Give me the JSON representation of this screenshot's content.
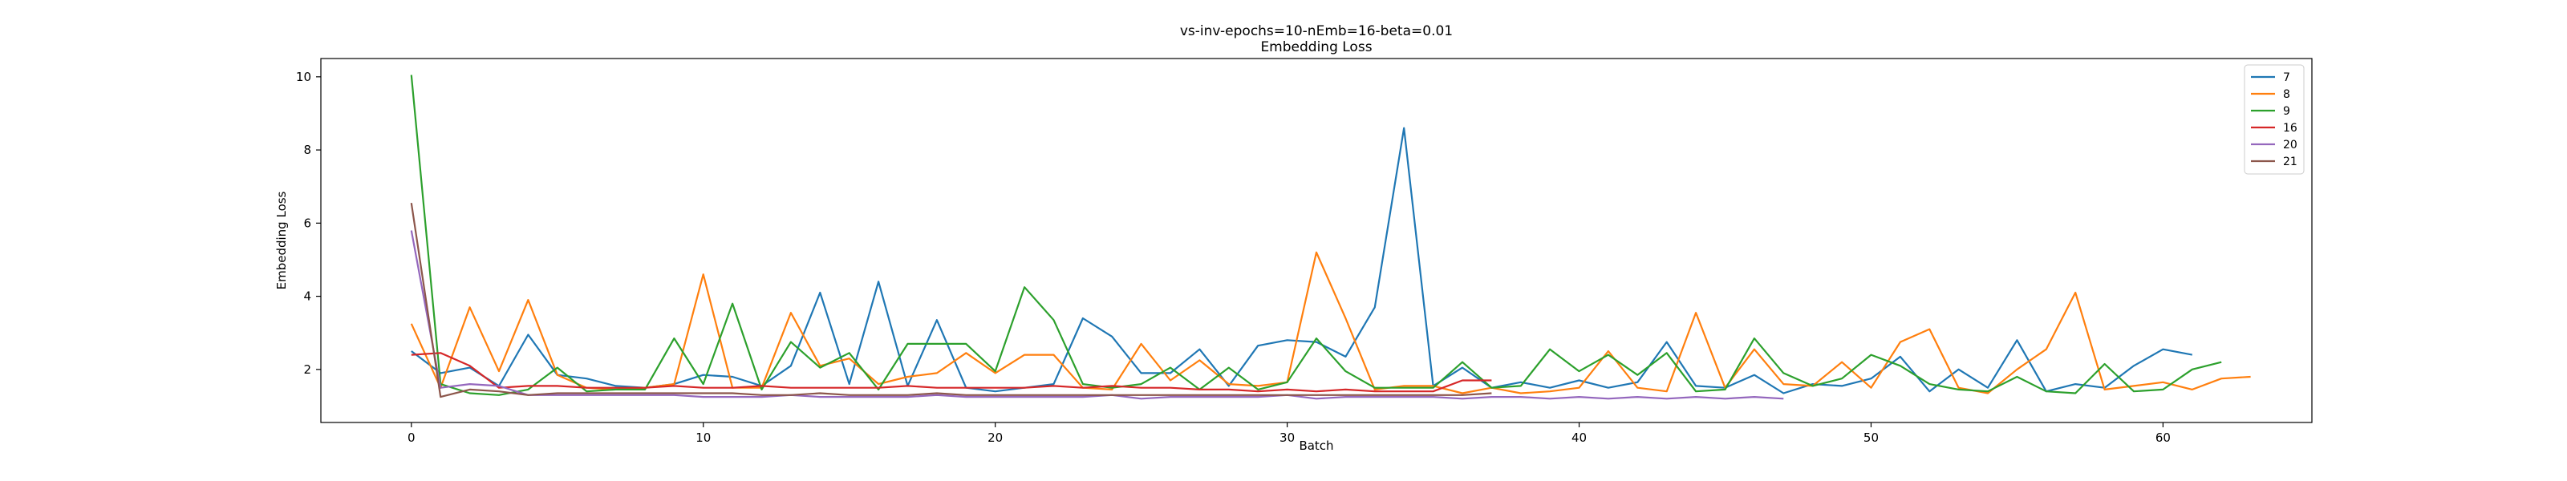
{
  "chart_data": {
    "type": "line",
    "title": "vs-inv-epochs=10-nEmb=16-beta=0.01",
    "subtitle": "Embedding Loss",
    "xlabel": "Batch",
    "ylabel": "Embedding Loss",
    "xlim": [
      -3.1,
      65.1
    ],
    "ylim": [
      0.55,
      10.5
    ],
    "xticks": [
      0,
      10,
      20,
      30,
      40,
      50,
      60
    ],
    "yticks": [
      2,
      4,
      6,
      8,
      10
    ],
    "grid": false,
    "legend": "top-right",
    "series": [
      {
        "name": "7",
        "color": "#1f77b4",
        "values": [
          2.5,
          1.9,
          2.05,
          1.55,
          2.95,
          1.85,
          1.75,
          1.55,
          1.5,
          1.6,
          1.85,
          1.8,
          1.55,
          2.1,
          4.1,
          1.6,
          4.4,
          1.55,
          3.35,
          1.5,
          1.4,
          1.5,
          1.6,
          3.4,
          2.9,
          1.9,
          1.9,
          2.55,
          1.55,
          2.65,
          2.8,
          2.75,
          2.35,
          3.7,
          8.6,
          1.55,
          2.05,
          1.5,
          1.65,
          1.5,
          1.7,
          1.5,
          1.65,
          2.75,
          1.55,
          1.5,
          1.85,
          1.35,
          1.6,
          1.55,
          1.75,
          2.35,
          1.4,
          2.0,
          1.5,
          2.8,
          1.4,
          1.6,
          1.5,
          2.1,
          2.55,
          2.4
        ]
      },
      {
        "name": "8",
        "color": "#ff7f0e",
        "values": [
          3.25,
          1.5,
          3.7,
          1.95,
          3.9,
          1.85,
          1.5,
          1.45,
          1.5,
          1.6,
          4.6,
          1.5,
          1.5,
          3.55,
          2.1,
          2.3,
          1.6,
          1.8,
          1.9,
          2.45,
          1.9,
          2.4,
          2.4,
          1.5,
          1.45,
          2.7,
          1.7,
          2.25,
          1.6,
          1.55,
          1.65,
          5.2,
          3.4,
          1.45,
          1.55,
          1.55,
          1.35,
          1.5,
          1.35,
          1.4,
          1.5,
          2.5,
          1.5,
          1.4,
          3.55,
          1.5,
          2.55,
          1.6,
          1.55,
          2.2,
          1.5,
          2.75,
          3.1,
          1.5,
          1.35,
          2.0,
          2.55,
          4.1,
          1.45,
          1.55,
          1.65,
          1.45,
          1.75,
          1.8
        ]
      },
      {
        "name": "9",
        "color": "#2ca02c",
        "values": [
          10.05,
          1.6,
          1.35,
          1.3,
          1.45,
          2.05,
          1.4,
          1.45,
          1.45,
          2.85,
          1.6,
          3.8,
          1.45,
          2.75,
          2.05,
          2.45,
          1.45,
          2.7,
          2.7,
          2.7,
          1.95,
          4.25,
          3.35,
          1.6,
          1.5,
          1.6,
          2.05,
          1.45,
          2.05,
          1.45,
          1.65,
          2.85,
          1.95,
          1.5,
          1.5,
          1.5,
          2.2,
          1.5,
          1.55,
          2.55,
          1.95,
          2.4,
          1.85,
          2.45,
          1.4,
          1.45,
          2.85,
          1.9,
          1.55,
          1.75,
          2.4,
          2.1,
          1.6,
          1.45,
          1.4,
          1.8,
          1.4,
          1.35,
          2.15,
          1.4,
          1.45,
          2.0,
          2.2
        ]
      },
      {
        "name": "16",
        "color": "#d62728",
        "values": [
          2.4,
          2.45,
          2.1,
          1.5,
          1.55,
          1.55,
          1.5,
          1.5,
          1.5,
          1.55,
          1.5,
          1.5,
          1.55,
          1.5,
          1.5,
          1.5,
          1.5,
          1.55,
          1.5,
          1.5,
          1.5,
          1.5,
          1.55,
          1.5,
          1.55,
          1.5,
          1.5,
          1.45,
          1.45,
          1.4,
          1.45,
          1.4,
          1.45,
          1.4,
          1.4,
          1.4,
          1.7,
          1.7
        ]
      },
      {
        "name": "20",
        "color": "#9467bd",
        "values": [
          5.8,
          1.5,
          1.6,
          1.55,
          1.3,
          1.3,
          1.3,
          1.3,
          1.3,
          1.3,
          1.25,
          1.25,
          1.25,
          1.3,
          1.25,
          1.25,
          1.25,
          1.25,
          1.3,
          1.25,
          1.25,
          1.25,
          1.25,
          1.25,
          1.3,
          1.2,
          1.25,
          1.25,
          1.25,
          1.25,
          1.3,
          1.2,
          1.25,
          1.25,
          1.25,
          1.25,
          1.2,
          1.25,
          1.25,
          1.2,
          1.25,
          1.2,
          1.25,
          1.2,
          1.25,
          1.2,
          1.25,
          1.2
        ]
      },
      {
        "name": "21",
        "color": "#8c564b",
        "values": [
          6.55,
          1.25,
          1.45,
          1.4,
          1.3,
          1.35,
          1.35,
          1.35,
          1.35,
          1.35,
          1.35,
          1.35,
          1.3,
          1.3,
          1.35,
          1.3,
          1.3,
          1.3,
          1.35,
          1.3,
          1.3,
          1.3,
          1.3,
          1.3,
          1.3,
          1.3,
          1.3,
          1.3,
          1.3,
          1.3,
          1.3,
          1.3,
          1.3,
          1.3,
          1.3,
          1.3,
          1.3,
          1.35
        ]
      }
    ]
  }
}
